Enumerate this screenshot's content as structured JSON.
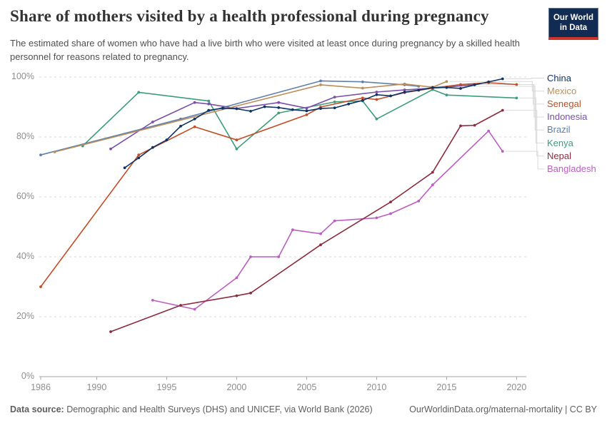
{
  "header": {
    "title": "Share of mothers visited by a health professional during pregnancy",
    "subtitle": "The estimated share of women who have had a live birth who were visited at least once during pregnancy by a skilled health personnel for reasons related to pregnancy.",
    "logo": {
      "line1": "Our World",
      "line2": "in Data"
    }
  },
  "chart_data": {
    "type": "line",
    "title": "Share of mothers visited by a health professional during pregnancy",
    "xlabel": "",
    "ylabel": "",
    "ylim": [
      0,
      100
    ],
    "xlim": [
      1985.9,
      2021
    ],
    "grid": "horizontal-dashed",
    "legend_position": "right",
    "x_ticks": [
      1986,
      1990,
      1995,
      2000,
      2005,
      2010,
      2015,
      2020
    ],
    "y_ticks": [
      {
        "v": 0,
        "label": "0%"
      },
      {
        "v": 20,
        "label": "20%"
      },
      {
        "v": 40,
        "label": "40%"
      },
      {
        "v": 60,
        "label": "60%"
      },
      {
        "v": 80,
        "label": "80%"
      },
      {
        "v": 100,
        "label": "100%"
      }
    ],
    "series": [
      {
        "name": "China",
        "color": "#0E3364",
        "points": [
          [
            1992,
            69.7
          ],
          [
            1993,
            73
          ],
          [
            1994,
            76.5
          ],
          [
            1995,
            79
          ],
          [
            1996,
            83.6
          ],
          [
            1997,
            86
          ],
          [
            1998,
            88.9
          ],
          [
            1999,
            89.6
          ],
          [
            2000,
            89.4
          ],
          [
            2001,
            88.6
          ],
          [
            2002,
            90.1
          ],
          [
            2003,
            89.8
          ],
          [
            2004,
            89.1
          ],
          [
            2005,
            88.7
          ],
          [
            2006,
            89.5
          ],
          [
            2007,
            89.7
          ],
          [
            2008,
            91
          ],
          [
            2009,
            92.2
          ],
          [
            2010,
            94.1
          ],
          [
            2011,
            93.7
          ],
          [
            2012,
            95
          ],
          [
            2013,
            95.6
          ],
          [
            2014,
            96.5
          ],
          [
            2015,
            96.5
          ],
          [
            2016,
            96.2
          ],
          [
            2017,
            97.4
          ],
          [
            2018,
            98.4
          ],
          [
            2019,
            99.4
          ]
        ]
      },
      {
        "name": "Mexico",
        "color": "#BC8E5A",
        "points": [
          [
            1987,
            75
          ],
          [
            2006,
            97.4
          ],
          [
            2009,
            96.3
          ],
          [
            2012,
            97.7
          ],
          [
            2014,
            96.6
          ],
          [
            2015,
            98.5
          ]
        ]
      },
      {
        "name": "Senegal",
        "color": "#C04E27",
        "points": [
          [
            1986,
            30
          ],
          [
            1993,
            74
          ],
          [
            1997,
            83.4
          ],
          [
            2000,
            79
          ],
          [
            2005,
            87.4
          ],
          [
            2006,
            90
          ],
          [
            2009,
            93
          ],
          [
            2010,
            92.5
          ],
          [
            2012,
            94.8
          ],
          [
            2014,
            96.3
          ],
          [
            2016,
            97.5
          ],
          [
            2018,
            98.1
          ],
          [
            2020,
            97.5
          ]
        ]
      },
      {
        "name": "Indonesia",
        "color": "#7A4FA8",
        "points": [
          [
            1991,
            76
          ],
          [
            1994,
            85
          ],
          [
            1997,
            91.5
          ],
          [
            1998,
            91
          ],
          [
            2000,
            89.5
          ],
          [
            2003,
            91.5
          ],
          [
            2005,
            89.6
          ],
          [
            2007,
            93.3
          ],
          [
            2010,
            95
          ],
          [
            2012,
            95.7
          ],
          [
            2015,
            96.6
          ],
          [
            2017,
            97.5
          ]
        ]
      },
      {
        "name": "Brazil",
        "color": "#6080AC",
        "points": [
          [
            1986,
            74
          ],
          [
            1996,
            86
          ],
          [
            2006,
            98.7
          ],
          [
            2009,
            98.4
          ],
          [
            2012,
            97.4
          ],
          [
            2013,
            96.9
          ]
        ]
      },
      {
        "name": "Kenya",
        "color": "#3E9C79",
        "points": [
          [
            1989,
            77
          ],
          [
            1993,
            94.9
          ],
          [
            1998,
            92
          ],
          [
            2000,
            76
          ],
          [
            2003,
            88
          ],
          [
            2007,
            91.7
          ],
          [
            2009,
            92
          ],
          [
            2010,
            86
          ],
          [
            2014,
            95.8
          ],
          [
            2015,
            94
          ],
          [
            2020,
            93
          ]
        ]
      },
      {
        "name": "Nepal",
        "color": "#8B2D3F",
        "points": [
          [
            1991,
            15
          ],
          [
            1996,
            23.8
          ],
          [
            2000,
            27
          ],
          [
            2001,
            27.9
          ],
          [
            2006,
            44
          ],
          [
            2011,
            58.3
          ],
          [
            2014,
            68.2
          ],
          [
            2016,
            83.7
          ],
          [
            2017,
            83.9
          ],
          [
            2019,
            88.9
          ]
        ]
      },
      {
        "name": "Bangladesh",
        "color": "#BA5FC0",
        "points": [
          [
            1994,
            25.5
          ],
          [
            1997,
            22.5
          ],
          [
            2000,
            33
          ],
          [
            2001,
            40
          ],
          [
            2003,
            40
          ],
          [
            2004,
            49
          ],
          [
            2006,
            47.7
          ],
          [
            2007,
            52
          ],
          [
            2010,
            53
          ],
          [
            2011,
            54.4
          ],
          [
            2013,
            58.6
          ],
          [
            2014,
            64
          ],
          [
            2018,
            82
          ],
          [
            2019,
            75.2
          ]
        ]
      }
    ]
  },
  "footer": {
    "source_label": "Data source:",
    "source_text": " Demographic and Health Surveys (DHS) and UNICEF, via World Bank (2026)",
    "link": "OurWorldinData.org/maternal-mortality",
    "separator": " | ",
    "license": "CC BY"
  },
  "colors": {
    "title": "#333333",
    "subtitle": "#4f4f4f",
    "tick_label": "#8e8e8e",
    "axis": "#a5a5a5",
    "grid": "#dadada",
    "connector": "#d9d9d9",
    "footer": "#5e5e5e",
    "logo_bg": "#112B52",
    "logo_stripe": "#CE342C"
  }
}
